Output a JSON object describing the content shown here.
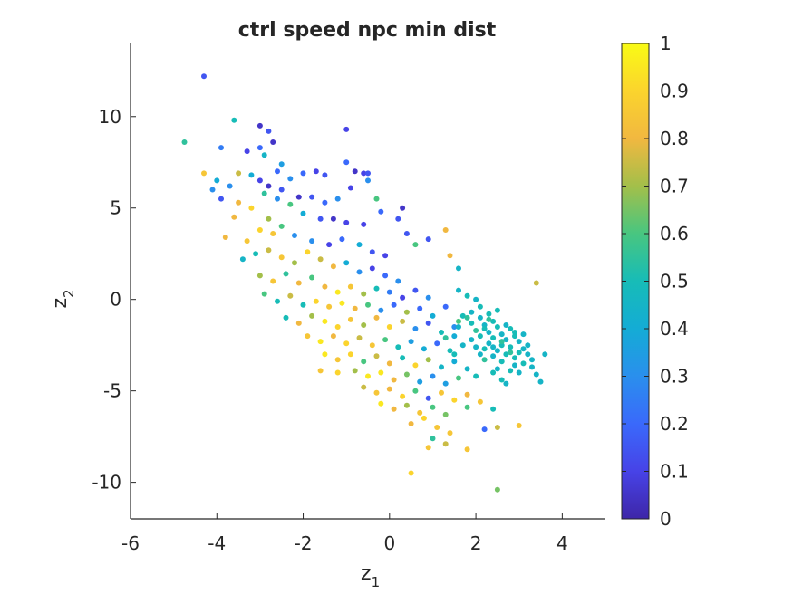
{
  "chart_data": {
    "type": "scatter",
    "title": "ctrl speed npc min dist",
    "xlabel": {
      "base": "z",
      "sub": "1"
    },
    "ylabel": {
      "base": "z",
      "sub": "2"
    },
    "xlim": [
      -6,
      5
    ],
    "ylim": [
      -12,
      14
    ],
    "xticks": [
      -6,
      -4,
      -2,
      0,
      2,
      4
    ],
    "yticks": [
      -10,
      -5,
      0,
      5,
      10
    ],
    "colorbar": {
      "colormap": "parula",
      "range": [
        0,
        1
      ],
      "ticks": [
        0,
        0.1,
        0.2,
        0.3,
        0.4,
        0.5,
        0.6,
        0.7,
        0.8,
        0.9,
        1
      ],
      "tick_labels": [
        "0",
        "0.1",
        "0.2",
        "0.3",
        "0.4",
        "0.5",
        "0.6",
        "0.7",
        "0.8",
        "0.9",
        "1"
      ]
    },
    "grid": false,
    "marker_style": "filled circles",
    "points": [
      [
        -4.3,
        12.2,
        0.15
      ],
      [
        -4.75,
        8.6,
        0.55
      ],
      [
        -3.6,
        9.8,
        0.5
      ],
      [
        -3.0,
        9.5,
        0.05
      ],
      [
        -2.8,
        9.2,
        0.15
      ],
      [
        -2.7,
        8.6,
        0.05
      ],
      [
        -3.9,
        8.3,
        0.25
      ],
      [
        -3.3,
        8.1,
        0.1
      ],
      [
        -3.0,
        8.3,
        0.2
      ],
      [
        -2.9,
        7.9,
        0.45
      ],
      [
        -2.6,
        7.0,
        0.2
      ],
      [
        -2.5,
        7.4,
        0.35
      ],
      [
        -4.0,
        6.5,
        0.4
      ],
      [
        -4.3,
        6.9,
        0.85
      ],
      [
        -3.7,
        6.2,
        0.3
      ],
      [
        -3.5,
        6.9,
        0.75
      ],
      [
        -3.2,
        6.8,
        0.4
      ],
      [
        -3.0,
        6.5,
        0.1
      ],
      [
        -2.8,
        6.2,
        0.05
      ],
      [
        -2.5,
        6.0,
        0.15
      ],
      [
        -2.3,
        6.6,
        0.3
      ],
      [
        -2.0,
        6.9,
        0.2
      ],
      [
        -1.7,
        7.0,
        0.1
      ],
      [
        -1.5,
        6.8,
        0.15
      ],
      [
        -1.0,
        7.5,
        0.2
      ],
      [
        -1.0,
        9.3,
        0.1
      ],
      [
        -0.8,
        7.0,
        0.05
      ],
      [
        -0.6,
        6.9,
        0.1
      ],
      [
        -0.5,
        6.5,
        0.3
      ],
      [
        -0.5,
        6.9,
        0.15
      ],
      [
        -0.9,
        6.1,
        0.1
      ],
      [
        -1.2,
        5.5,
        0.3
      ],
      [
        -1.5,
        5.3,
        0.2
      ],
      [
        -1.8,
        5.6,
        0.15
      ],
      [
        -2.1,
        5.6,
        0.05
      ],
      [
        -2.3,
        5.2,
        0.6
      ],
      [
        -2.6,
        5.5,
        0.3
      ],
      [
        -2.9,
        5.8,
        0.55
      ],
      [
        -3.2,
        5.0,
        0.9
      ],
      [
        -3.5,
        5.3,
        0.8
      ],
      [
        -3.9,
        5.5,
        0.15
      ],
      [
        -4.1,
        6.0,
        0.3
      ],
      [
        -2.0,
        4.7,
        0.4
      ],
      [
        -1.6,
        4.4,
        0.15
      ],
      [
        -1.3,
        4.4,
        0.05
      ],
      [
        -1.0,
        4.2,
        0.1
      ],
      [
        -0.6,
        4.1,
        0.1
      ],
      [
        -0.2,
        4.8,
        0.2
      ],
      [
        0.2,
        4.4,
        0.15
      ],
      [
        -0.3,
        5.5,
        0.6
      ],
      [
        0.3,
        5.0,
        0.05
      ],
      [
        0.4,
        3.6,
        0.15
      ],
      [
        0.6,
        3.0,
        0.6
      ],
      [
        0.9,
        3.3,
        0.15
      ],
      [
        1.3,
        3.8,
        0.8
      ],
      [
        1.4,
        2.4,
        0.8
      ],
      [
        1.6,
        1.7,
        0.45
      ],
      [
        -2.8,
        4.4,
        0.7
      ],
      [
        -2.5,
        4.0,
        0.6
      ],
      [
        -2.7,
        3.6,
        0.85
      ],
      [
        -3.0,
        3.8,
        0.9
      ],
      [
        -3.3,
        3.2,
        0.85
      ],
      [
        -3.6,
        4.5,
        0.8
      ],
      [
        -3.8,
        3.4,
        0.8
      ],
      [
        -2.2,
        3.5,
        0.3
      ],
      [
        -1.8,
        3.2,
        0.3
      ],
      [
        -1.4,
        3.0,
        0.1
      ],
      [
        -1.1,
        3.3,
        0.2
      ],
      [
        -0.7,
        3.0,
        0.4
      ],
      [
        -0.4,
        2.6,
        0.15
      ],
      [
        -0.1,
        2.4,
        0.1
      ],
      [
        -3.4,
        2.2,
        0.45
      ],
      [
        -3.1,
        2.5,
        0.5
      ],
      [
        -2.8,
        2.7,
        0.75
      ],
      [
        -2.5,
        2.3,
        0.85
      ],
      [
        -2.2,
        2.0,
        0.7
      ],
      [
        -1.9,
        2.6,
        0.9
      ],
      [
        -1.6,
        2.2,
        0.75
      ],
      [
        -1.3,
        1.8,
        0.8
      ],
      [
        -1.0,
        2.0,
        0.4
      ],
      [
        -0.7,
        1.5,
        0.3
      ],
      [
        -0.4,
        1.7,
        0.1
      ],
      [
        -0.1,
        1.3,
        0.2
      ],
      [
        0.2,
        1.0,
        0.3
      ],
      [
        -3.0,
        1.3,
        0.7
      ],
      [
        -2.7,
        1.0,
        0.85
      ],
      [
        -2.4,
        1.4,
        0.55
      ],
      [
        -2.1,
        0.9,
        0.8
      ],
      [
        -1.8,
        1.2,
        0.6
      ],
      [
        -1.5,
        0.7,
        0.8
      ],
      [
        -1.2,
        0.4,
        0.95
      ],
      [
        -0.9,
        0.7,
        0.85
      ],
      [
        -0.6,
        0.3,
        0.7
      ],
      [
        -0.3,
        0.6,
        0.5
      ],
      [
        0.0,
        0.4,
        0.25
      ],
      [
        0.3,
        0.1,
        0.1
      ],
      [
        0.6,
        0.5,
        0.15
      ],
      [
        0.9,
        0.1,
        0.3
      ],
      [
        -2.9,
        0.3,
        0.6
      ],
      [
        -2.6,
        -0.1,
        0.5
      ],
      [
        -2.3,
        0.2,
        0.75
      ],
      [
        -2.0,
        -0.3,
        0.5
      ],
      [
        -1.7,
        -0.1,
        0.9
      ],
      [
        -1.4,
        -0.4,
        0.85
      ],
      [
        -1.1,
        -0.2,
        0.95
      ],
      [
        -0.8,
        -0.5,
        0.8
      ],
      [
        -0.5,
        -0.3,
        0.6
      ],
      [
        -0.2,
        -0.6,
        0.3
      ],
      [
        0.1,
        -0.3,
        0.2
      ],
      [
        0.4,
        -0.7,
        0.7
      ],
      [
        0.7,
        -0.5,
        0.2
      ],
      [
        1.0,
        -0.9,
        0.4
      ],
      [
        1.3,
        -0.4,
        0.2
      ],
      [
        1.6,
        -1.2,
        0.6
      ],
      [
        -2.4,
        -1.0,
        0.5
      ],
      [
        -2.1,
        -1.3,
        0.8
      ],
      [
        -1.8,
        -0.9,
        0.7
      ],
      [
        -1.5,
        -1.2,
        0.95
      ],
      [
        -1.2,
        -1.5,
        0.9
      ],
      [
        -0.9,
        -1.1,
        0.85
      ],
      [
        -0.6,
        -1.4,
        0.7
      ],
      [
        -0.3,
        -1.0,
        0.8
      ],
      [
        0.0,
        -1.5,
        0.9
      ],
      [
        0.3,
        -1.2,
        0.75
      ],
      [
        0.6,
        -1.6,
        0.3
      ],
      [
        0.9,
        -1.3,
        0.15
      ],
      [
        1.2,
        -1.8,
        0.5
      ],
      [
        1.5,
        -1.5,
        0.3
      ],
      [
        -1.9,
        -2.0,
        0.85
      ],
      [
        -1.6,
        -2.3,
        0.95
      ],
      [
        -1.3,
        -2.0,
        0.8
      ],
      [
        -1.0,
        -2.4,
        0.9
      ],
      [
        -0.7,
        -2.1,
        0.75
      ],
      [
        -0.4,
        -2.5,
        0.85
      ],
      [
        -0.1,
        -2.2,
        0.6
      ],
      [
        0.2,
        -2.6,
        0.5
      ],
      [
        0.5,
        -2.3,
        0.35
      ],
      [
        0.8,
        -2.7,
        0.4
      ],
      [
        1.1,
        -2.4,
        0.2
      ],
      [
        1.4,
        -2.8,
        0.5
      ],
      [
        -1.5,
        -3.0,
        0.95
      ],
      [
        -1.2,
        -3.3,
        0.85
      ],
      [
        -0.9,
        -3.0,
        0.9
      ],
      [
        -0.6,
        -3.4,
        0.6
      ],
      [
        -0.3,
        -3.1,
        0.75
      ],
      [
        0.0,
        -3.5,
        0.8
      ],
      [
        0.3,
        -3.2,
        0.5
      ],
      [
        0.6,
        -3.6,
        0.9
      ],
      [
        0.9,
        -3.3,
        0.7
      ],
      [
        1.2,
        -3.7,
        0.45
      ],
      [
        1.5,
        -3.4,
        0.4
      ],
      [
        -1.6,
        -3.9,
        0.85
      ],
      [
        -1.2,
        -4.0,
        0.9
      ],
      [
        -0.8,
        -3.9,
        0.7
      ],
      [
        -0.5,
        -4.2,
        0.95
      ],
      [
        -0.2,
        -4.0,
        0.95
      ],
      [
        0.1,
        -4.4,
        0.8
      ],
      [
        0.4,
        -4.1,
        0.65
      ],
      [
        0.7,
        -4.5,
        0.35
      ],
      [
        1.0,
        -4.2,
        0.3
      ],
      [
        1.3,
        -4.6,
        0.35
      ],
      [
        1.6,
        -4.3,
        0.6
      ],
      [
        -0.6,
        -4.8,
        0.75
      ],
      [
        -0.3,
        -5.1,
        0.85
      ],
      [
        0.0,
        -4.9,
        0.8
      ],
      [
        0.3,
        -5.3,
        0.9
      ],
      [
        0.6,
        -5.0,
        0.6
      ],
      [
        0.9,
        -5.4,
        0.15
      ],
      [
        1.2,
        -5.1,
        0.85
      ],
      [
        1.5,
        -5.5,
        0.9
      ],
      [
        1.8,
        -5.2,
        0.8
      ],
      [
        -0.2,
        -5.7,
        0.95
      ],
      [
        0.1,
        -6.0,
        0.8
      ],
      [
        0.4,
        -5.8,
        0.7
      ],
      [
        0.7,
        -6.2,
        0.85
      ],
      [
        1.0,
        -5.9,
        0.6
      ],
      [
        1.3,
        -6.3,
        0.65
      ],
      [
        1.8,
        -5.9,
        0.6
      ],
      [
        2.1,
        -5.6,
        0.85
      ],
      [
        0.5,
        -6.8,
        0.8
      ],
      [
        0.8,
        -6.5,
        0.9
      ],
      [
        1.1,
        -7.0,
        0.85
      ],
      [
        1.4,
        -7.3,
        0.85
      ],
      [
        1.0,
        -7.6,
        0.55
      ],
      [
        1.3,
        -7.9,
        0.75
      ],
      [
        0.9,
        -8.1,
        0.85
      ],
      [
        1.8,
        -8.2,
        0.85
      ],
      [
        2.2,
        -7.1,
        0.2
      ],
      [
        2.5,
        -7.0,
        0.75
      ],
      [
        3.0,
        -6.9,
        0.85
      ],
      [
        2.4,
        -6.0,
        0.5
      ],
      [
        0.5,
        -9.5,
        0.9
      ],
      [
        2.5,
        -10.4,
        0.65
      ],
      [
        3.4,
        0.9,
        0.75
      ],
      [
        1.6,
        0.5,
        0.45
      ],
      [
        1.8,
        0.2,
        0.5
      ],
      [
        2.0,
        0.0,
        0.45
      ],
      [
        2.1,
        -0.4,
        0.5
      ],
      [
        1.9,
        -0.7,
        0.45
      ],
      [
        1.7,
        -0.9,
        0.5
      ],
      [
        1.6,
        -1.5,
        0.45
      ],
      [
        1.9,
        -1.3,
        0.5
      ],
      [
        2.1,
        -1.0,
        0.45
      ],
      [
        2.3,
        -0.8,
        0.5
      ],
      [
        2.2,
        -1.4,
        0.45
      ],
      [
        2.4,
        -1.2,
        0.5
      ],
      [
        2.0,
        -1.7,
        0.55
      ],
      [
        2.3,
        -1.8,
        0.45
      ],
      [
        2.5,
        -1.5,
        0.5
      ],
      [
        2.6,
        -1.9,
        0.45
      ],
      [
        2.8,
        -1.6,
        0.5
      ],
      [
        2.4,
        -2.1,
        0.5
      ],
      [
        2.7,
        -2.2,
        0.45
      ],
      [
        2.9,
        -2.0,
        0.5
      ],
      [
        3.0,
        -2.3,
        0.45
      ],
      [
        2.6,
        -2.5,
        0.5
      ],
      [
        2.3,
        -2.4,
        0.45
      ],
      [
        2.1,
        -2.0,
        0.5
      ],
      [
        1.9,
        -2.2,
        0.45
      ],
      [
        2.2,
        -2.7,
        0.5
      ],
      [
        2.5,
        -2.8,
        0.45
      ],
      [
        2.8,
        -2.6,
        0.5
      ],
      [
        3.1,
        -2.7,
        0.45
      ],
      [
        2.7,
        -3.0,
        0.5
      ],
      [
        2.4,
        -3.1,
        0.45
      ],
      [
        2.9,
        -3.2,
        0.5
      ],
      [
        3.2,
        -3.0,
        0.45
      ],
      [
        2.6,
        -3.4,
        0.5
      ],
      [
        2.9,
        -3.6,
        0.45
      ],
      [
        3.1,
        -3.5,
        0.5
      ],
      [
        3.3,
        -3.3,
        0.45
      ],
      [
        2.8,
        -3.9,
        0.5
      ],
      [
        3.0,
        -4.0,
        0.45
      ],
      [
        2.5,
        -3.8,
        0.45
      ],
      [
        2.2,
        -3.3,
        0.55
      ],
      [
        3.4,
        -4.1,
        0.45
      ],
      [
        3.6,
        -3.0,
        0.45
      ],
      [
        3.5,
        -4.5,
        0.45
      ],
      [
        2.6,
        -4.4,
        0.5
      ],
      [
        2.7,
        -4.6,
        0.45
      ],
      [
        2.3,
        -1.1,
        0.55
      ],
      [
        2.5,
        -0.6,
        0.5
      ],
      [
        2.0,
        -2.6,
        0.45
      ],
      [
        1.8,
        -1.0,
        0.55
      ],
      [
        2.2,
        -1.6,
        0.5
      ],
      [
        2.7,
        -1.4,
        0.45
      ],
      [
        2.9,
        -1.8,
        0.5
      ],
      [
        3.1,
        -1.9,
        0.45
      ],
      [
        2.6,
        -2.3,
        0.55
      ],
      [
        2.4,
        -2.6,
        0.45
      ],
      [
        3.0,
        -2.9,
        0.5
      ],
      [
        3.2,
        -2.5,
        0.45
      ],
      [
        2.8,
        -2.9,
        0.55
      ],
      [
        2.1,
        -3.0,
        0.45
      ],
      [
        1.5,
        -2.0,
        0.4
      ],
      [
        1.7,
        -2.5,
        0.45
      ],
      [
        1.5,
        -3.0,
        0.5
      ],
      [
        1.3,
        -2.1,
        0.55
      ],
      [
        2.0,
        -4.2,
        0.5
      ],
      [
        1.8,
        -3.8,
        0.45
      ],
      [
        2.4,
        -4.0,
        0.5
      ],
      [
        3.3,
        -3.7,
        0.45
      ]
    ]
  }
}
